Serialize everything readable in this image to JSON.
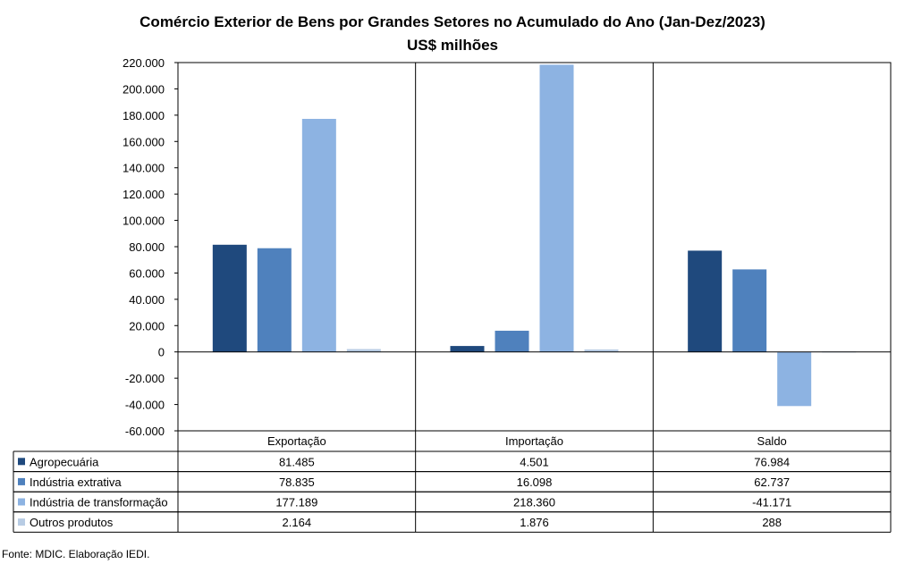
{
  "chart_data": {
    "type": "bar",
    "title": "Comércio Exterior de Bens por Grandes Setores no Acumulado do Ano (Jan-Dez/2023)",
    "subtitle": "US$ milhões",
    "categories": [
      "Exportação",
      "Importação",
      "Saldo"
    ],
    "series": [
      {
        "name": "Agropecuária",
        "values": [
          81485,
          4501,
          76984
        ],
        "labels": [
          "81.485",
          "4.501",
          "76.984"
        ],
        "color": "#1f497d"
      },
      {
        "name": "Indústria extrativa",
        "values": [
          78835,
          16098,
          62737
        ],
        "labels": [
          "78.835",
          "16.098",
          "62.737"
        ],
        "color": "#4f81bd"
      },
      {
        "name": "Indústria de transformação",
        "values": [
          177189,
          218360,
          -41171
        ],
        "labels": [
          "177.189",
          "218.360",
          "-41.171"
        ],
        "color": "#8db3e2"
      },
      {
        "name": "Outros produtos",
        "values": [
          2164,
          1876,
          288
        ],
        "labels": [
          "2.164",
          "1.876",
          "288"
        ],
        "color": "#b8cce4"
      }
    ],
    "ylim": [
      -60000,
      220000
    ],
    "yticks": [
      220000,
      200000,
      180000,
      160000,
      140000,
      120000,
      100000,
      80000,
      60000,
      40000,
      20000,
      0,
      -20000,
      -40000,
      -60000
    ],
    "ytick_labels": [
      "220.000",
      "200.000",
      "180.000",
      "160.000",
      "140.000",
      "120.000",
      "100.000",
      "80.000",
      "60.000",
      "40.000",
      "20.000",
      "0",
      "-20.000",
      "-40.000",
      "-60.000"
    ],
    "grid": false,
    "legend": "data-table-below"
  },
  "source_note": "Fonte: MDIC. Elaboração IEDI."
}
